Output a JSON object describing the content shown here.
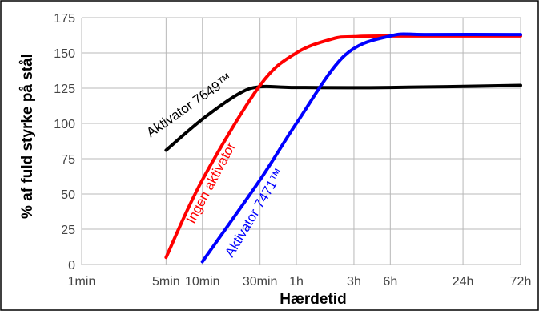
{
  "chart_data": {
    "type": "line",
    "title": "",
    "xlabel": "Hærdetid",
    "ylabel": "% af fuld styrke på stål",
    "x_scale": "log",
    "x_ticks": [
      {
        "label": "1min",
        "minutes": 1
      },
      {
        "label": "5min",
        "minutes": 5
      },
      {
        "label": "10min",
        "minutes": 10
      },
      {
        "label": "30min",
        "minutes": 30
      },
      {
        "label": "1h",
        "minutes": 60
      },
      {
        "label": "3h",
        "minutes": 180
      },
      {
        "label": "6h",
        "minutes": 360
      },
      {
        "label": "24h",
        "minutes": 1440
      },
      {
        "label": "72h",
        "minutes": 4320
      }
    ],
    "xlim_minutes": [
      1,
      4320
    ],
    "ylim": [
      0,
      175
    ],
    "y_ticks": [
      0,
      25,
      50,
      75,
      100,
      125,
      150,
      175
    ],
    "grid": true,
    "legend": "none",
    "series": [
      {
        "name": "Aktivator 7649™",
        "color": "#000000",
        "points": [
          {
            "x": 5,
            "y": 81
          },
          {
            "x": 10,
            "y": 103
          },
          {
            "x": 20,
            "y": 121
          },
          {
            "x": 30,
            "y": 126
          },
          {
            "x": 60,
            "y": 125.5
          },
          {
            "x": 360,
            "y": 125.5
          },
          {
            "x": 4320,
            "y": 127
          }
        ]
      },
      {
        "name": "Ingen aktivator",
        "color": "#ff0000",
        "points": [
          {
            "x": 5,
            "y": 5
          },
          {
            "x": 10,
            "y": 60
          },
          {
            "x": 30,
            "y": 127
          },
          {
            "x": 60,
            "y": 150
          },
          {
            "x": 120,
            "y": 160
          },
          {
            "x": 180,
            "y": 161.5
          },
          {
            "x": 360,
            "y": 162
          },
          {
            "x": 4320,
            "y": 162
          }
        ]
      },
      {
        "name": "Aktivator 7471™",
        "color": "#0000ff",
        "points": [
          {
            "x": 10,
            "y": 2
          },
          {
            "x": 30,
            "y": 60
          },
          {
            "x": 60,
            "y": 100
          },
          {
            "x": 150,
            "y": 148
          },
          {
            "x": 360,
            "y": 162
          },
          {
            "x": 720,
            "y": 163
          },
          {
            "x": 4320,
            "y": 163
          }
        ]
      }
    ],
    "annotations": [
      {
        "text": "Aktivator 7649™",
        "series": 0
      },
      {
        "text": "Ingen aktivator",
        "series": 1
      },
      {
        "text": "Aktivator 7471™",
        "series": 2
      }
    ]
  }
}
